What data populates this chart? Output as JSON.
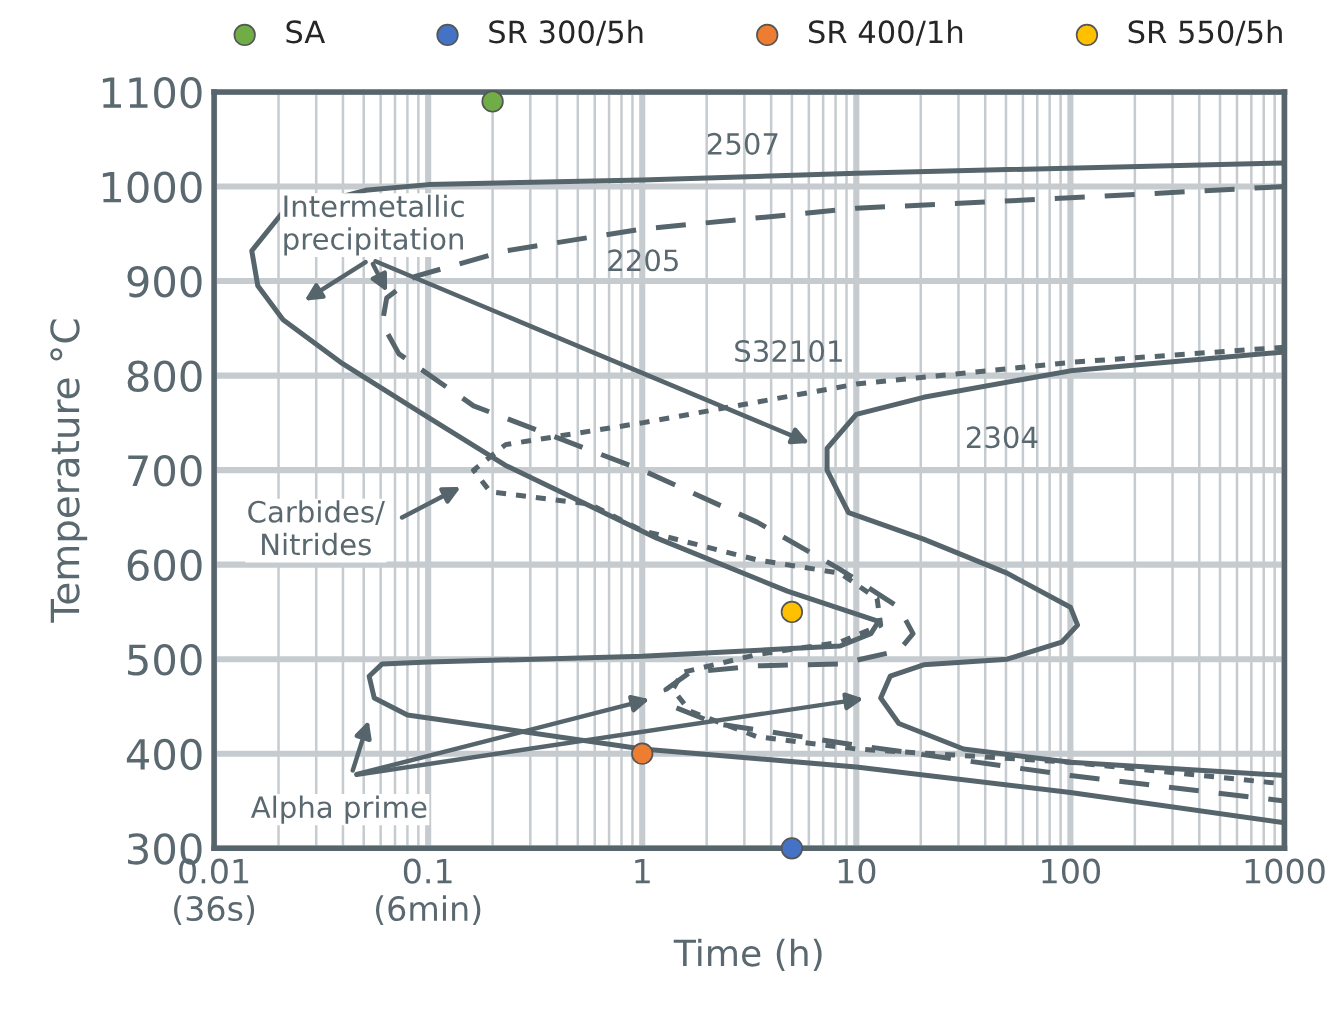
{
  "chart_data": {
    "type": "line",
    "xlabel": "Time (h)",
    "ylabel": "Temperature °C",
    "log": "x",
    "xlim": [
      0.01,
      1000
    ],
    "ylim": [
      300,
      1100
    ],
    "xticks": [
      {
        "value": 0.01,
        "label": "0.01\n(36s)"
      },
      {
        "value": 0.1,
        "label": "0.1\n(6min)"
      },
      1,
      10,
      100,
      1000
    ],
    "yticks": [
      300,
      400,
      500,
      600,
      700,
      800,
      900,
      1000,
      1100
    ],
    "grid": true,
    "legend": "top",
    "series": [
      {
        "color": "#56646c",
        "line_style": "solid",
        "x": [
          1000,
          10,
          1,
          0.1,
          0.051,
          0.021,
          0.015,
          0.016,
          0.021,
          0.039,
          0.095,
          0.23,
          1.17,
          4.76,
          12.7,
          11.7,
          8.4,
          1,
          0.1,
          0.061,
          0.053,
          0.056,
          0.08,
          1,
          10,
          100,
          1000
        ],
        "values": [
          1025,
          1014,
          1007,
          1002,
          996,
          973,
          932,
          895,
          859,
          814,
          759,
          705,
          628,
          572,
          540,
          527,
          514,
          503,
          497,
          495,
          482,
          459,
          441,
          405,
          386,
          359,
          327
        ]
      },
      {
        "color": "#56646c",
        "line_style": "solid",
        "x": [
          1000,
          100,
          20.6,
          10,
          7.3,
          7.3,
          9.2,
          20.6,
          50.6,
          100,
          108,
          91,
          50.6,
          20.6,
          14.4,
          13.0,
          15.8,
          31.7,
          100,
          1000
        ],
        "values": [
          825,
          805,
          777,
          759,
          723,
          700,
          655,
          627,
          591,
          555,
          536,
          518,
          500,
          494,
          482,
          459,
          432,
          405,
          391,
          377
        ]
      },
      {
        "color": "#56646c",
        "line_style": "dashed",
        "x": [
          1000,
          100,
          10,
          1,
          0.23,
          0.087,
          0.064,
          0.061,
          0.073,
          0.163,
          1,
          3.44,
          8.4,
          15.8,
          18.4,
          15.8,
          8.4,
          3.44,
          1.67,
          1.29,
          1.39,
          2.2,
          10,
          100,
          1000
        ],
        "values": [
          1000,
          988,
          977,
          955,
          932,
          905,
          882,
          855,
          823,
          768,
          700,
          645,
          595,
          555,
          527,
          509,
          495,
          493,
          486,
          468,
          450,
          432,
          409,
          377,
          350
        ]
      },
      {
        "color": "#56646c",
        "line_style": "dotted",
        "x": [
          1000,
          100,
          10,
          1,
          0.23,
          0.163,
          0.195,
          0.57,
          1,
          3.44,
          8.4,
          12.5,
          13.0,
          8.4,
          3.44,
          1.54,
          1.39,
          1.67,
          3.44,
          10,
          100,
          1000
        ],
        "values": [
          830,
          814,
          791,
          750,
          727,
          700,
          677,
          664,
          636,
          605,
          591,
          564,
          536,
          518,
          505,
          486,
          468,
          445,
          418,
          405,
          391,
          368
        ]
      },
      {
        "type": "scatter",
        "name": "SA",
        "color": "#70ad47",
        "x": [
          0.2
        ],
        "values": [
          1090
        ]
      },
      {
        "type": "scatter",
        "name": "SR 300/5h",
        "color": "#4472c4",
        "x": [
          5
        ],
        "values": [
          300
        ]
      },
      {
        "type": "scatter",
        "name": "SR 400/1h",
        "color": "#ed7d31",
        "x": [
          1
        ],
        "values": [
          400
        ]
      },
      {
        "type": "scatter",
        "name": "SR 550/5h",
        "color": "#ffc000",
        "x": [
          5
        ],
        "values": [
          550
        ]
      }
    ],
    "annotations": [
      "2507",
      "2205",
      "S32101",
      "2304",
      "Intermetallic\nprecipitation",
      "Carbides/\nNitrides",
      "Alpha prime"
    ]
  }
}
